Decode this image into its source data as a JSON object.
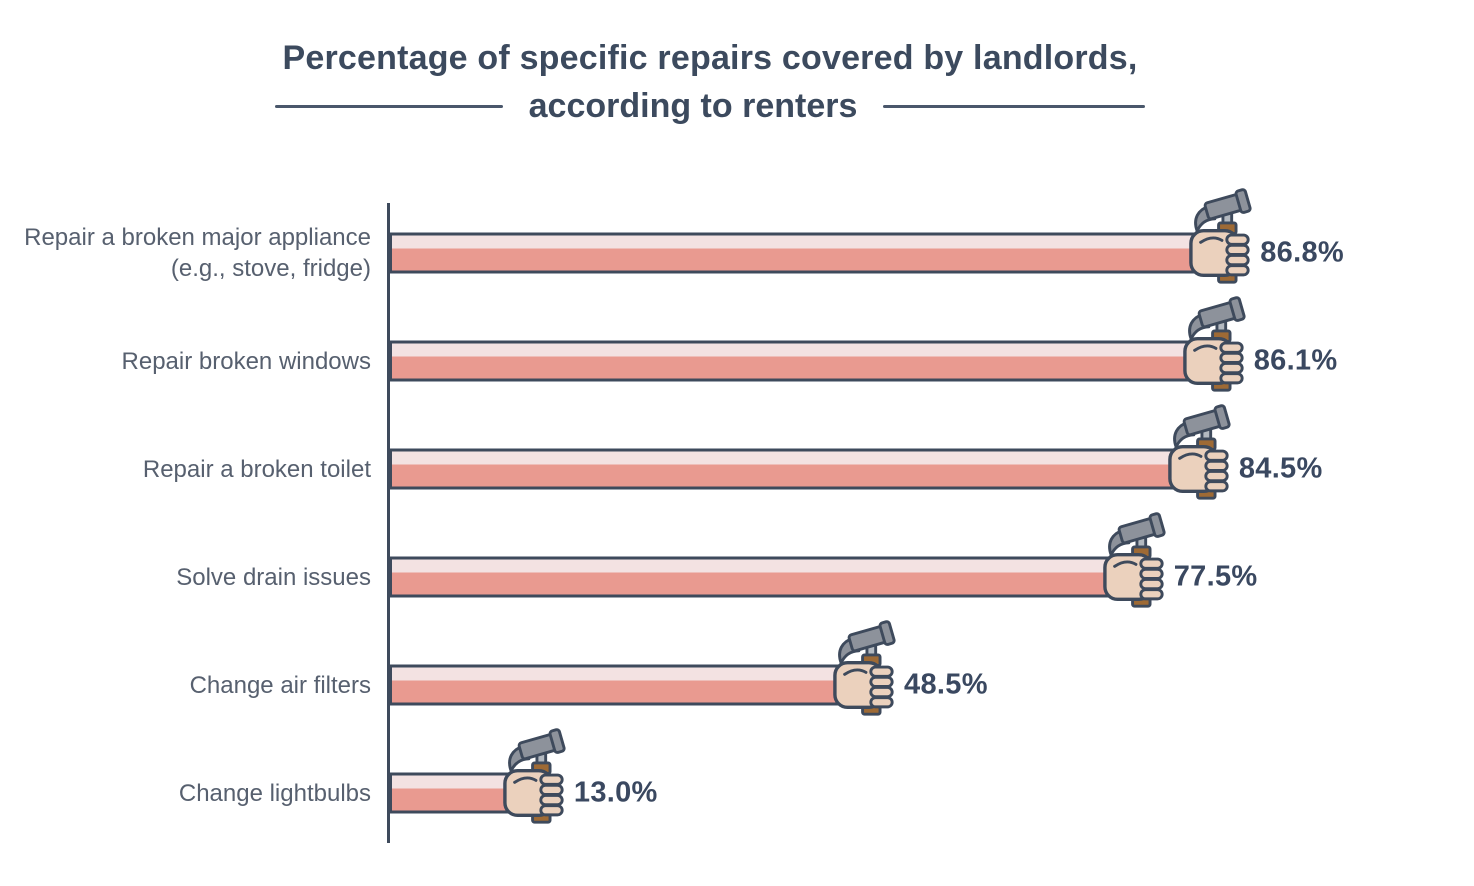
{
  "title": {
    "line1": "Percentage of specific repairs covered by landlords,",
    "line2": "according to renters"
  },
  "chart_data": {
    "type": "bar",
    "orientation": "horizontal",
    "title": "Percentage of specific repairs covered by landlords, according to renters",
    "categories": [
      "Repair a broken major appliance (e.g., stove, fridge)",
      "Repair broken windows",
      "Repair a broken toilet",
      "Solve drain issues",
      "Change air filters",
      "Change lightbulbs"
    ],
    "values": [
      86.8,
      86.1,
      84.5,
      77.5,
      48.5,
      13.0
    ],
    "value_labels": [
      "86.8%",
      "86.1%",
      "84.5%",
      "77.5%",
      "48.5%",
      "13.0%"
    ],
    "xlabel": "",
    "ylabel": "",
    "xlim": [
      0,
      100
    ],
    "grid": false,
    "legend": false,
    "bar_end_icon": "fist-holding-hammer-icon",
    "colors": {
      "bar_fill_top": "#f3e2e2",
      "bar_fill_bottom": "#e99a90",
      "bar_outline": "#3e4a5c",
      "title_text": "#3c4a5e",
      "category_text": "#57606f",
      "value_text": "#3a4860",
      "hammer_head_gray": "#8d929b",
      "handle_brown": "#9e6a35",
      "hand_skin": "#ebd1bd"
    }
  }
}
